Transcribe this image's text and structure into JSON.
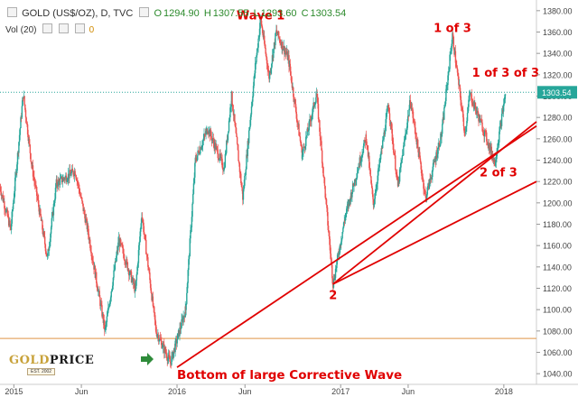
{
  "header": {
    "symbol": "GOLD (US$/OZ), D, TVC",
    "o_label": "O",
    "o_val": "1294.90",
    "h_label": "H",
    "h_val": "1307.55",
    "l_label": "L",
    "l_val": "1293.60",
    "c_label": "C",
    "c_val": "1303.54",
    "vol_label": "Vol (20)",
    "vol_val": "0"
  },
  "logo": {
    "main_a": "GOLD",
    "main_b": "PRICE",
    "sub": "EST. 2002"
  },
  "colors": {
    "up": "#26a69a",
    "down": "#ef5350",
    "annotation": "#e00000",
    "price_line": "#26a69a",
    "support": "#e6a86a",
    "logo_gold": "#c8a23a"
  },
  "chart_data": {
    "type": "candlestick",
    "title": "GOLD (US$/OZ), D, TVC",
    "ylim": [
      1030,
      1390
    ],
    "y_ticks": [
      1040,
      1060,
      1080,
      1100,
      1120,
      1140,
      1160,
      1180,
      1200,
      1220,
      1240,
      1260,
      1280,
      1300,
      1320,
      1340,
      1360,
      1380
    ],
    "x_range": [
      "2014-12-01",
      "2018-03-15"
    ],
    "x_ticks": [
      {
        "label": "2015",
        "date": "2015-01-01"
      },
      {
        "label": "Jun",
        "date": "2015-06-01"
      },
      {
        "label": "2016",
        "date": "2016-01-01"
      },
      {
        "label": "Jun",
        "date": "2016-06-01"
      },
      {
        "label": "2017",
        "date": "2017-01-01"
      },
      {
        "label": "Jun",
        "date": "2017-06-01"
      },
      {
        "label": "2018",
        "date": "2018-01-01"
      }
    ],
    "price_path": [
      [
        "2014-12-01",
        1215
      ],
      [
        "2014-12-25",
        1175
      ],
      [
        "2015-01-22",
        1302
      ],
      [
        "2015-02-10",
        1235
      ],
      [
        "2015-03-17",
        1148
      ],
      [
        "2015-04-06",
        1218
      ],
      [
        "2015-05-18",
        1230
      ],
      [
        "2015-06-15",
        1175
      ],
      [
        "2015-07-24",
        1080
      ],
      [
        "2015-08-24",
        1165
      ],
      [
        "2015-09-30",
        1118
      ],
      [
        "2015-10-14",
        1190
      ],
      [
        "2015-11-15",
        1080
      ],
      [
        "2015-12-17",
        1050
      ],
      [
        "2016-01-20",
        1100
      ],
      [
        "2016-02-11",
        1240
      ],
      [
        "2016-03-10",
        1270
      ],
      [
        "2016-04-15",
        1232
      ],
      [
        "2016-05-02",
        1300
      ],
      [
        "2016-05-27",
        1205
      ],
      [
        "2016-06-24",
        1328
      ],
      [
        "2016-07-06",
        1372
      ],
      [
        "2016-07-25",
        1318
      ],
      [
        "2016-08-10",
        1360
      ],
      [
        "2016-09-06",
        1335
      ],
      [
        "2016-10-07",
        1245
      ],
      [
        "2016-11-08",
        1302
      ],
      [
        "2016-12-15",
        1124
      ],
      [
        "2017-01-10",
        1185
      ],
      [
        "2017-02-27",
        1262
      ],
      [
        "2017-03-15",
        1198
      ],
      [
        "2017-04-18",
        1292
      ],
      [
        "2017-05-09",
        1215
      ],
      [
        "2017-06-06",
        1296
      ],
      [
        "2017-07-10",
        1205
      ],
      [
        "2017-08-15",
        1265
      ],
      [
        "2017-09-08",
        1357
      ],
      [
        "2017-10-06",
        1265
      ],
      [
        "2017-10-17",
        1302
      ],
      [
        "2017-11-15",
        1270
      ],
      [
        "2017-12-12",
        1238
      ],
      [
        "2018-01-05",
        1303.54
      ]
    ],
    "current_price": 1303.54,
    "support_level": 1073,
    "trendlines": [
      {
        "from": [
          "2016-01-01",
          1046
        ],
        "to": [
          "2018-03-15",
          1272
        ]
      },
      {
        "from": [
          "2016-12-15",
          1124
        ],
        "to": [
          "2018-03-15",
          1276
        ]
      },
      {
        "from": [
          "2016-12-15",
          1124
        ],
        "to": [
          "2018-03-15",
          1220
        ]
      }
    ],
    "annotations": [
      {
        "text": "Wave 1",
        "date": "2016-07-06",
        "y": 1372
      },
      {
        "text": "1 of 3",
        "date": "2017-09-08",
        "y": 1360
      },
      {
        "text": "1 of 3 of 3",
        "date": "2018-01-05",
        "y": 1318
      },
      {
        "text": "2 of 3",
        "date": "2017-12-20",
        "y": 1225
      },
      {
        "text": "2",
        "date": "2016-12-15",
        "y": 1110
      },
      {
        "text": "Bottom of large Corrective Wave",
        "date": "2016-01-01",
        "y": 1035
      }
    ]
  }
}
